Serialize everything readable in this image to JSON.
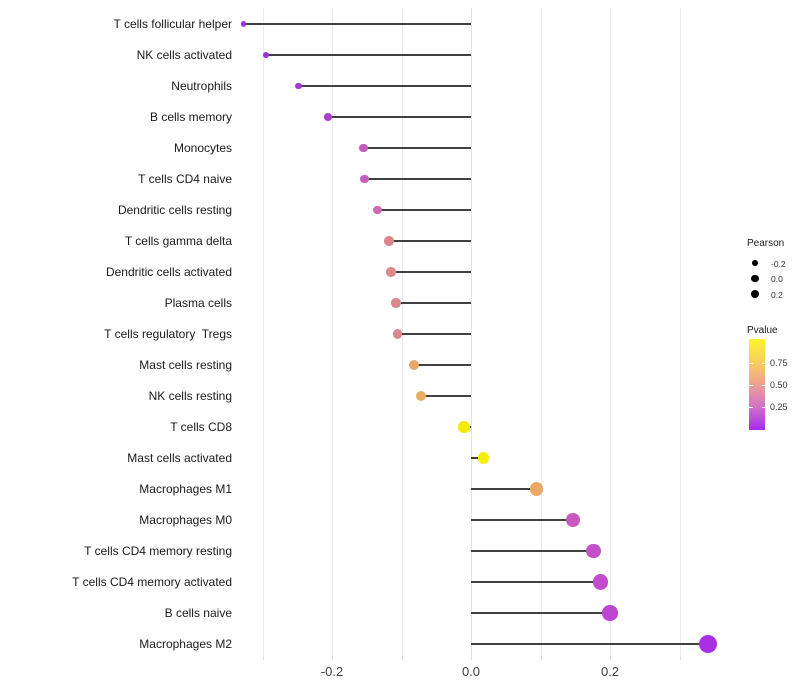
{
  "figure": {
    "background": "#ffffff"
  },
  "chart_data": {
    "type": "scatter",
    "subtype": "lollipop",
    "title": "",
    "xlabel": "",
    "ylabel": "",
    "xlim": [
      -0.34,
      0.38
    ],
    "grid": "vertical-only",
    "zero_line": 0.0,
    "x_ticks": [
      {
        "value": -0.2,
        "label": "-0.2"
      },
      {
        "value": 0.0,
        "label": "0.0"
      },
      {
        "value": 0.2,
        "label": "0.2"
      }
    ],
    "x_minor_gridlines": [
      -0.3,
      -0.1,
      0.1,
      0.3
    ],
    "points": [
      {
        "label": "T cells follicular helper",
        "pearson": -0.327,
        "pvalue_approx": 0.12,
        "color": "#9935DF"
      },
      {
        "label": "NK cells activated",
        "pearson": -0.295,
        "pvalue_approx": 0.13,
        "color": "#9C32DB"
      },
      {
        "label": "Neutrophils",
        "pearson": -0.248,
        "pvalue_approx": 0.16,
        "color": "#A338D6"
      },
      {
        "label": "B cells memory",
        "pearson": -0.206,
        "pvalue_approx": 0.2,
        "color": "#AC40CE"
      },
      {
        "label": "Monocytes",
        "pearson": -0.155,
        "pvalue_approx": 0.32,
        "color": "#C55CBB"
      },
      {
        "label": "T cells CD4 naive",
        "pearson": -0.153,
        "pvalue_approx": 0.32,
        "color": "#C55DBA"
      },
      {
        "label": "Dendritic cells resting",
        "pearson": -0.135,
        "pvalue_approx": 0.38,
        "color": "#CC6DB0"
      },
      {
        "label": "T cells gamma delta",
        "pearson": -0.118,
        "pvalue_approx": 0.48,
        "color": "#D9868F"
      },
      {
        "label": "Dendritic cells activated",
        "pearson": -0.115,
        "pvalue_approx": 0.49,
        "color": "#DB8B8B"
      },
      {
        "label": "Plasma cells",
        "pearson": -0.108,
        "pvalue_approx": 0.48,
        "color": "#D9888E"
      },
      {
        "label": "T cells regulatory  Tregs",
        "pearson": -0.106,
        "pvalue_approx": 0.48,
        "color": "#D98790"
      },
      {
        "label": "Mast cells resting",
        "pearson": -0.082,
        "pvalue_approx": 0.65,
        "color": "#E7A76A"
      },
      {
        "label": "NK cells resting",
        "pearson": -0.072,
        "pvalue_approx": 0.66,
        "color": "#E9AC65"
      },
      {
        "label": "T cells CD8",
        "pearson": -0.01,
        "pvalue_approx": 0.95,
        "color": "#F4EB08"
      },
      {
        "label": "Mast cells activated",
        "pearson": 0.018,
        "pvalue_approx": 0.93,
        "color": "#F5EC0C"
      },
      {
        "label": "Macrophages M1",
        "pearson": 0.094,
        "pvalue_approx": 0.64,
        "color": "#E9A965"
      },
      {
        "label": "Macrophages M0",
        "pearson": 0.147,
        "pvalue_approx": 0.3,
        "color": "#C857BE"
      },
      {
        "label": "T cells CD4 memory resting",
        "pearson": 0.176,
        "pvalue_approx": 0.26,
        "color": "#C250C8"
      },
      {
        "label": "T cells CD4 memory activated",
        "pearson": 0.187,
        "pvalue_approx": 0.25,
        "color": "#C14CCD"
      },
      {
        "label": "B cells naive",
        "pearson": 0.2,
        "pvalue_approx": 0.23,
        "color": "#BD47D1"
      },
      {
        "label": "Macrophages M2",
        "pearson": 0.341,
        "pvalue_approx": 0.08,
        "color": "#A930E2"
      }
    ],
    "legend": {
      "size_legend": {
        "title": "Pearson",
        "dot_color": "#000000",
        "entries": [
          {
            "label": "-0.2",
            "value": -0.2
          },
          {
            "label": "0.0",
            "value": 0.0
          },
          {
            "label": "0.2",
            "value": 0.2
          }
        ]
      },
      "color_legend": {
        "title": "Pvalue",
        "tick_labels": [
          "0.75",
          "0.50",
          "0.25"
        ],
        "gradient_top_to_bottom": [
          "#FCF32D",
          "#F8CE5A",
          "#ECA291",
          "#D06FC9",
          "#A62BEA"
        ]
      }
    },
    "colors": {
      "stem": "#404040",
      "gridline": "#ececec",
      "zero_gridline": "#e0e0e0",
      "axis_text": "#404040",
      "label_text": "#1a1a1a"
    }
  }
}
